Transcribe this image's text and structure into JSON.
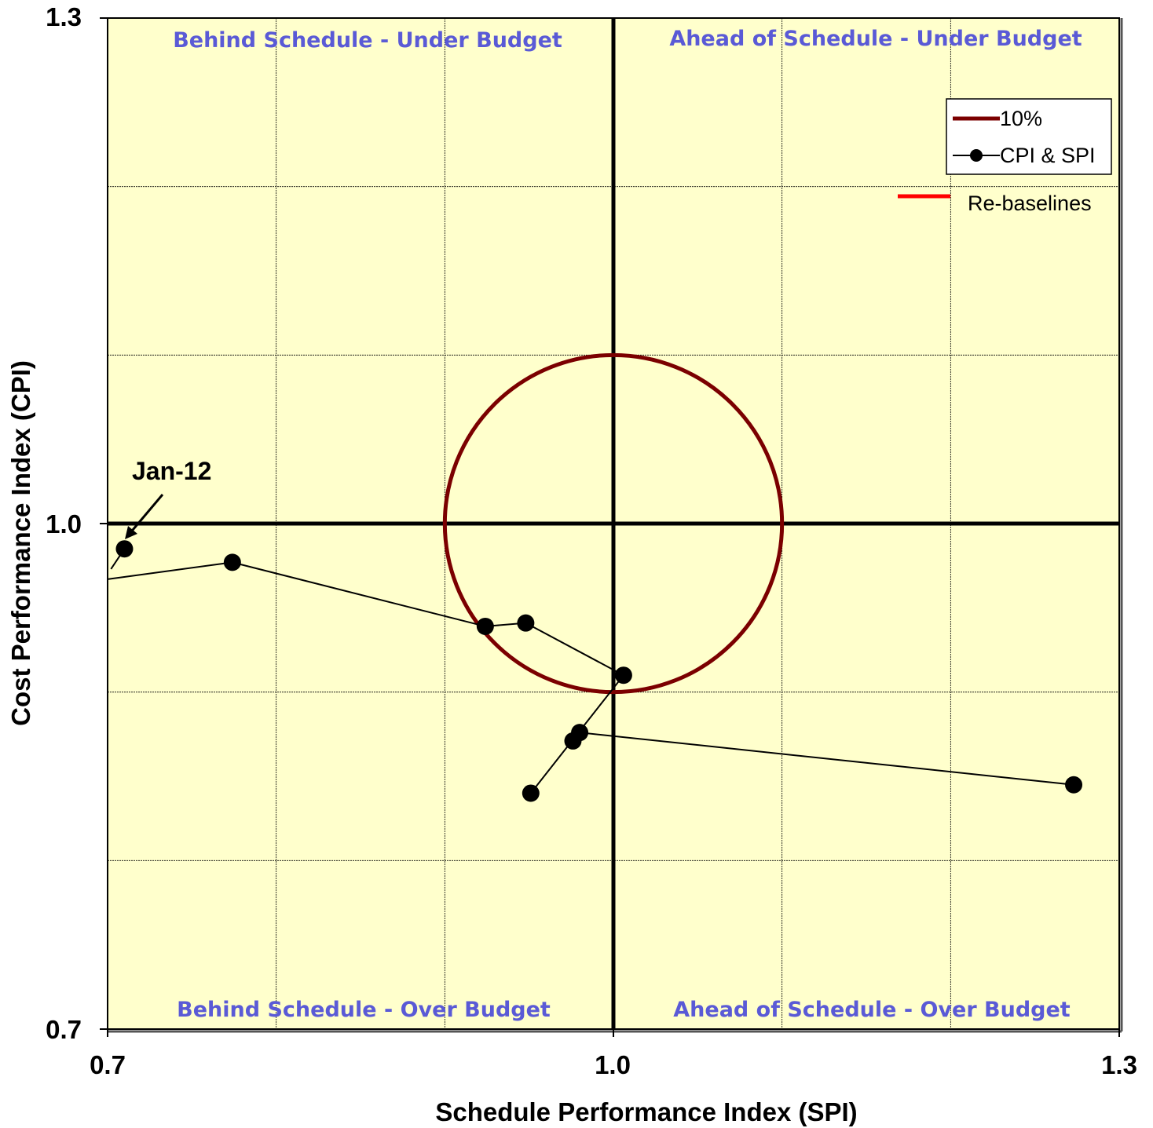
{
  "chart_data": {
    "type": "scatter",
    "xlabel": "Schedule Performance Index (SPI)",
    "ylabel": "Cost Performance Index (CPI)",
    "xlim": [
      0.7,
      1.3
    ],
    "ylim": [
      0.7,
      1.3
    ],
    "x_tick_labels": [
      "0.7",
      "1.0",
      "1.3"
    ],
    "y_tick_labels": [
      "1.3",
      "1.0",
      "0.7"
    ],
    "grid": true,
    "quadrant_labels": {
      "top_left": "Behind Schedule - Under Budget",
      "top_right": "Ahead of Schedule - Under Budget",
      "bottom_left": "Behind Schedule - Over Budget",
      "bottom_right": "Ahead of Schedule - Over Budget"
    },
    "legend": {
      "placement": "top-right",
      "items": [
        {
          "label": "10%",
          "color": "#7b0000"
        },
        {
          "label": "CPI & SPI",
          "color": "#000000"
        },
        {
          "label": "Re-baselines",
          "color": "#ff0000"
        }
      ]
    },
    "circle": {
      "name": "10%",
      "center": [
        1.0,
        1.0
      ],
      "radius": 0.1,
      "color": "#7b0000"
    },
    "series": [
      {
        "name": "CPI & SPI",
        "points": [
          [
            0.71,
            0.985
          ],
          [
            0.774,
            0.977
          ],
          [
            0.924,
            0.939
          ],
          [
            0.948,
            0.941
          ],
          [
            1.006,
            0.91
          ],
          [
            0.98,
            0.876
          ],
          [
            0.976,
            0.871
          ],
          [
            0.951,
            0.84
          ],
          [
            1.273,
            0.845
          ]
        ],
        "order": [
          0,
          1,
          2,
          3,
          4,
          5,
          6,
          7
        ],
        "line_segments": [
          [
            [
              0.7,
              0.967
            ],
            [
              0.774,
              0.977
            ]
          ],
          [
            [
              0.774,
              0.977
            ],
            [
              0.924,
              0.939
            ]
          ],
          [
            [
              0.924,
              0.939
            ],
            [
              0.948,
              0.941
            ]
          ],
          [
            [
              0.948,
              0.941
            ],
            [
              1.006,
              0.91
            ]
          ],
          [
            [
              1.006,
              0.91
            ],
            [
              0.951,
              0.84
            ]
          ],
          [
            [
              0.98,
              0.876
            ],
            [
              1.273,
              0.845
            ]
          ],
          [
            [
              0.71,
              0.985
            ],
            [
              0.702,
              0.973
            ]
          ]
        ]
      }
    ],
    "annotation": {
      "text": "Jan-12",
      "target": [
        0.71,
        0.985
      ]
    },
    "colors": {
      "plot_background": "#ffffcc",
      "quad_text": "#5a5ad6",
      "circle": "#7b0000",
      "rebaseline": "#ff0000"
    }
  }
}
